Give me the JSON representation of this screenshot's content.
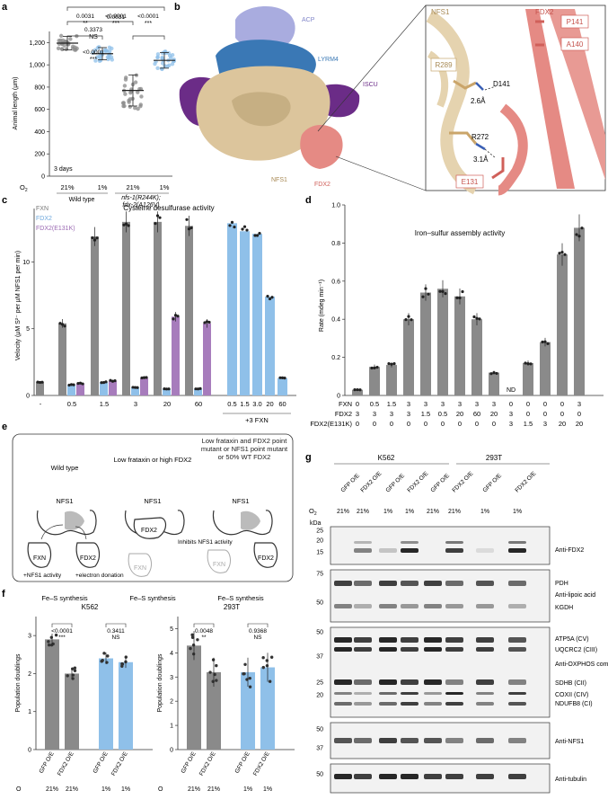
{
  "panels": {
    "a": "a",
    "b": "b",
    "c": "c",
    "d": "d",
    "e": "e",
    "f": "f",
    "g": "g"
  },
  "colors": {
    "gray": "#8a8a8a",
    "blue": "#8fc0e9",
    "purple": "#a77cbc",
    "salmon": "#e58a84",
    "tan": "#dcc59c",
    "dark_purple": "#6b2c87",
    "acp": "#a9acdf",
    "lyrm4": "#3a78b5"
  },
  "panel_a": {
    "ylabel": "Animal length (µm)",
    "yticks": [
      "0",
      "200",
      "400",
      "600",
      "800",
      "1,000",
      "1,200"
    ],
    "o2_label": "O",
    "o2_sub": "2",
    "o2_values": [
      "21%",
      "1%",
      "21%",
      "1%"
    ],
    "group_labels": [
      "Wild type",
      "nfs-1(R244K);",
      "fdx-2(A126V)"
    ],
    "inset": "3 days",
    "stats": [
      {
        "p": "0.0031",
        "sig": "**"
      },
      {
        "p": "<0.0001",
        "sig": "***"
      },
      {
        "p": "<0.0001",
        "sig": "***"
      },
      {
        "p": "0.3373",
        "sig": "NS"
      },
      {
        "p": "<0.0001",
        "sig": "***"
      }
    ],
    "chart_data": {
      "type": "scatter",
      "categories": [
        "Wild type 21%",
        "Wild type 1%",
        "nfs-1(R244K);fdx-2(A126V) 21%",
        "nfs-1(R244K);fdx-2(A126V) 1%"
      ],
      "means": [
        1195,
        1100,
        770,
        1040
      ],
      "sd": [
        60,
        55,
        140,
        70
      ],
      "ylim": [
        0,
        1300
      ],
      "ylabel": "Animal length (µm)"
    }
  },
  "panel_b": {
    "labels": {
      "acp": "ACP",
      "lyrm4": "LYRM4",
      "iscu": "ISCU",
      "nfs1": "NFS1",
      "fdx2": "FDX2"
    },
    "zoom": {
      "nfs1": "NFS1",
      "fdx2": "FDX2",
      "p141": "P141",
      "a140": "A140",
      "r289": "R289",
      "d141": "D141",
      "d1": "2.6Å",
      "r272": "R272",
      "d2": "3.1Å",
      "e131": "E131"
    }
  },
  "panel_c": {
    "title": "Cysteine desulfurase activity",
    "ylabel": "Velocity (µM S²⁻ per µM NFS1 per min)",
    "legend": [
      "FXN",
      "FDX2",
      "FDX2(E131K)"
    ],
    "xtick_labels": [
      "-",
      "0.5",
      "1.5",
      "3",
      "20",
      "60",
      "0.5",
      "1.5",
      "3.0",
      "20",
      "60"
    ],
    "fxn_note": "+3 FXN",
    "chart_data": {
      "type": "bar",
      "groups": [
        "-",
        "0.5",
        "1.5",
        "3",
        "20",
        "60"
      ],
      "series": [
        {
          "name": "FXN",
          "values": [
            1.0,
            5.4,
            11.9,
            13.0,
            13.0,
            12.7
          ]
        },
        {
          "name": "FDX2",
          "values": [
            null,
            0.8,
            1.0,
            0.6,
            0.5,
            0.5
          ]
        },
        {
          "name": "FDX2(E131K)",
          "values": [
            null,
            0.9,
            1.1,
            1.3,
            5.9,
            5.4
          ]
        }
      ],
      "extra_group": {
        "label": "+3 FXN",
        "categories": [
          "0.5",
          "1.5",
          "3.0",
          "20",
          "60"
        ],
        "values": [
          12.9,
          12.3,
          12.1,
          7.4,
          1.3
        ]
      },
      "ylim": [
        0,
        14
      ],
      "yticks": [
        "0",
        "5",
        "10"
      ]
    }
  },
  "panel_d": {
    "title": "Iron–sulfur assembly activity",
    "ylabel": "Rate (mdeg min⁻¹)",
    "yticks": [
      "0",
      "0.2",
      "0.4",
      "0.6",
      "0.8",
      "1.0"
    ],
    "nd": "ND",
    "row_labels": [
      "FXN",
      "FDX2",
      "FDX2(E131K)"
    ],
    "rows": {
      "fxn": [
        "0",
        "0.5",
        "1.5",
        "3",
        "3",
        "3",
        "3",
        "3",
        "3",
        "0",
        "0",
        "0",
        "0",
        "3",
        "3"
      ],
      "fdx2": [
        "3",
        "3",
        "3",
        "3",
        "1.5",
        "0.5",
        "20",
        "60",
        "20",
        "3",
        "0",
        "0",
        "0",
        "0",
        "0"
      ],
      "e131k": [
        "0",
        "0",
        "0",
        "0",
        "0",
        "0",
        "0",
        "0",
        "0",
        "3",
        "1.5",
        "3",
        "20",
        "20",
        "60"
      ]
    },
    "chart_data": {
      "type": "bar",
      "values": [
        0.03,
        0.15,
        0.16,
        0.4,
        0.54,
        0.56,
        0.52,
        0.4,
        0.12,
        0,
        0.17,
        0.28,
        0.74,
        0.88
      ],
      "ylim": [
        0,
        1.0
      ]
    }
  },
  "panel_e": {
    "columns": [
      {
        "title": "Wild type",
        "nfs1": "NFS1",
        "fxn": "FXN",
        "fdx2": "FDX2",
        "fxn_note": "+NFS1 activity",
        "fdx2_note": "+electron donation",
        "result": "Fe–S synthesis"
      },
      {
        "title": "Low frataxin or high FDX2",
        "nfs1": "NFS1",
        "fdx2": "FDX2",
        "inhibit": "Inhibits NFS1 activity",
        "fxn": "FXN",
        "result": "Fe–S synthesis"
      },
      {
        "title": "Low frataxin and FDX2 point mutant or NFS1 point mutant or 50% WT FDX2",
        "nfs1": "NFS1",
        "fxn": "FXN",
        "fdx2": "FDX2",
        "result": "Fe–S synthesis"
      }
    ]
  },
  "panel_f": {
    "ylabel": "Population doublings",
    "charts": [
      {
        "title": "K562",
        "yticks": [
          "0",
          "1",
          "2",
          "3"
        ],
        "x": [
          "GFP O/E",
          "FDX2 O/E",
          "GFP O/E",
          "FDX2 O/E"
        ],
        "o2": [
          "21%",
          "21%",
          "1%",
          "1%"
        ],
        "stats": [
          {
            "p": "<0.0001",
            "sig": "***"
          },
          {
            "p": "0.3411",
            "sig": "NS"
          }
        ],
        "chart_data": {
          "type": "bar",
          "values": [
            2.9,
            2.0,
            2.4,
            2.3
          ],
          "ylim": [
            0,
            3.5
          ]
        }
      },
      {
        "title": "293T",
        "yticks": [
          "0",
          "1",
          "2",
          "3",
          "4",
          "5"
        ],
        "x": [
          "GFP O/E",
          "FDX2 O/E",
          "GFP O/E",
          "FDX2 O/E"
        ],
        "o2": [
          "21%",
          "21%",
          "1%",
          "1%"
        ],
        "stats": [
          {
            "p": "0.0048",
            "sig": "**"
          },
          {
            "p": "0.9368",
            "sig": "NS"
          }
        ],
        "chart_data": {
          "type": "bar",
          "values": [
            4.3,
            3.2,
            3.2,
            3.4
          ],
          "ylim": [
            0,
            5.5
          ]
        }
      }
    ]
  },
  "panel_g": {
    "cell_lines": [
      "K562",
      "293T"
    ],
    "lanes": [
      "GFP O/E",
      "FDX2 O/E",
      "GFP O/E",
      "FDX2 O/E",
      "GFP O/E",
      "FDX2 O/E",
      "GFP O/E",
      "FDX2 O/E"
    ],
    "o2": [
      "21%",
      "21%",
      "1%",
      "1%",
      "21%",
      "21%",
      "1%",
      "1%"
    ],
    "kda": "kDa",
    "blots": [
      {
        "name": "Anti-FDX2",
        "markers": [
          "25",
          "20",
          "15"
        ]
      },
      {
        "name": "Anti-lipoic acid",
        "bands": [
          "PDH",
          "KGDH"
        ],
        "markers": [
          "75",
          "50"
        ]
      },
      {
        "name": "Anti-OXPHOS complexes",
        "bands": [
          "ATP5A (CV)",
          "UQCRC2 (CIII)",
          "SDHB (CII)",
          "COXII (CIV)",
          "NDUFB8 (CI)"
        ],
        "markers": [
          "50",
          "37",
          "25",
          "20"
        ]
      },
      {
        "name": "Anti-NFS1",
        "markers": [
          "50",
          "37"
        ]
      },
      {
        "name": "Anti-tubulin",
        "markers": [
          "50"
        ]
      }
    ]
  }
}
